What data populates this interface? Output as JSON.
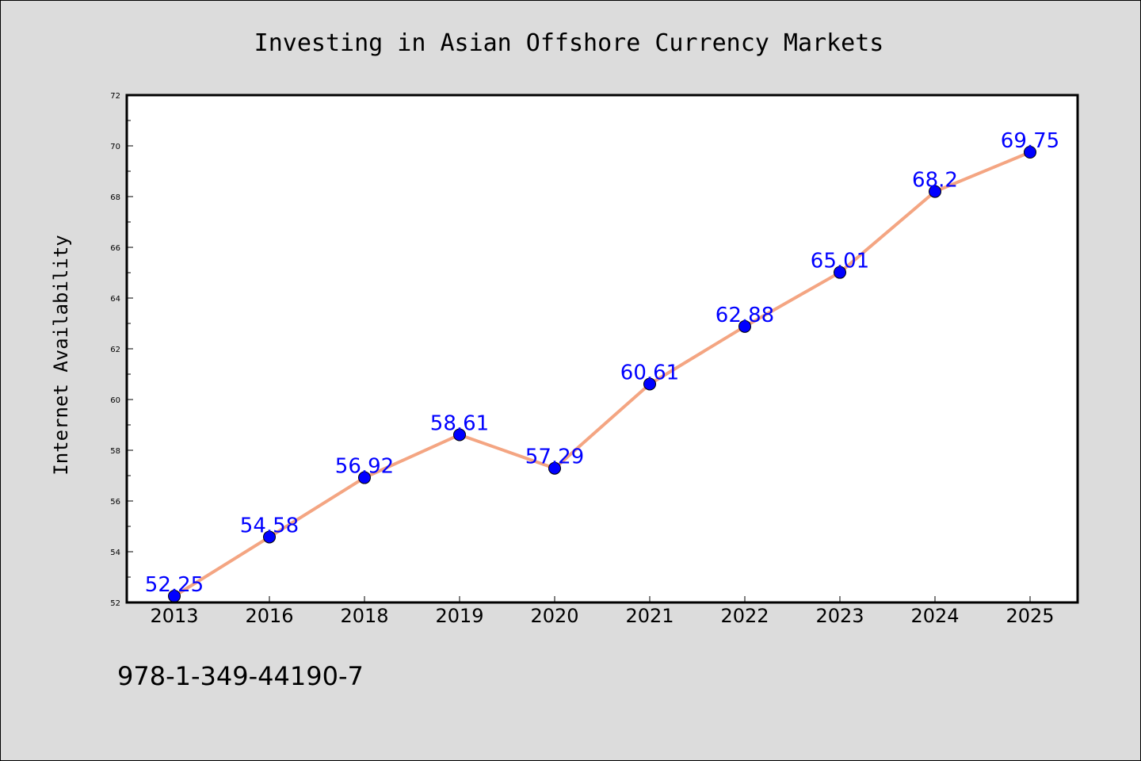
{
  "chart_data": {
    "type": "line",
    "title": "Investing in Asian Offshore Currency Markets",
    "xlabel": "",
    "ylabel": "Internet Availability",
    "categories": [
      "2013",
      "2016",
      "2018",
      "2019",
      "2020",
      "2021",
      "2022",
      "2023",
      "2024",
      "2025"
    ],
    "series": [
      {
        "values": [
          52.25,
          54.58,
          56.92,
          58.61,
          57.29,
          60.61,
          62.88,
          65.01,
          68.2,
          69.75
        ],
        "labels": [
          "52.25",
          "54.58",
          "56.92",
          "58.61",
          "57.29",
          "60.61",
          "62.88",
          "65.01",
          "68.2",
          "69.75"
        ],
        "line_color": "#f4a582",
        "marker_color": "#0000ff"
      }
    ],
    "ylim": [
      52,
      72
    ],
    "yticks": [
      "52",
      "54",
      "56",
      "58",
      "60",
      "62",
      "64",
      "66",
      "68",
      "70",
      "72"
    ],
    "grid": false,
    "legend": "none"
  },
  "footer": {
    "isbn": "978-1-349-44190-7"
  }
}
